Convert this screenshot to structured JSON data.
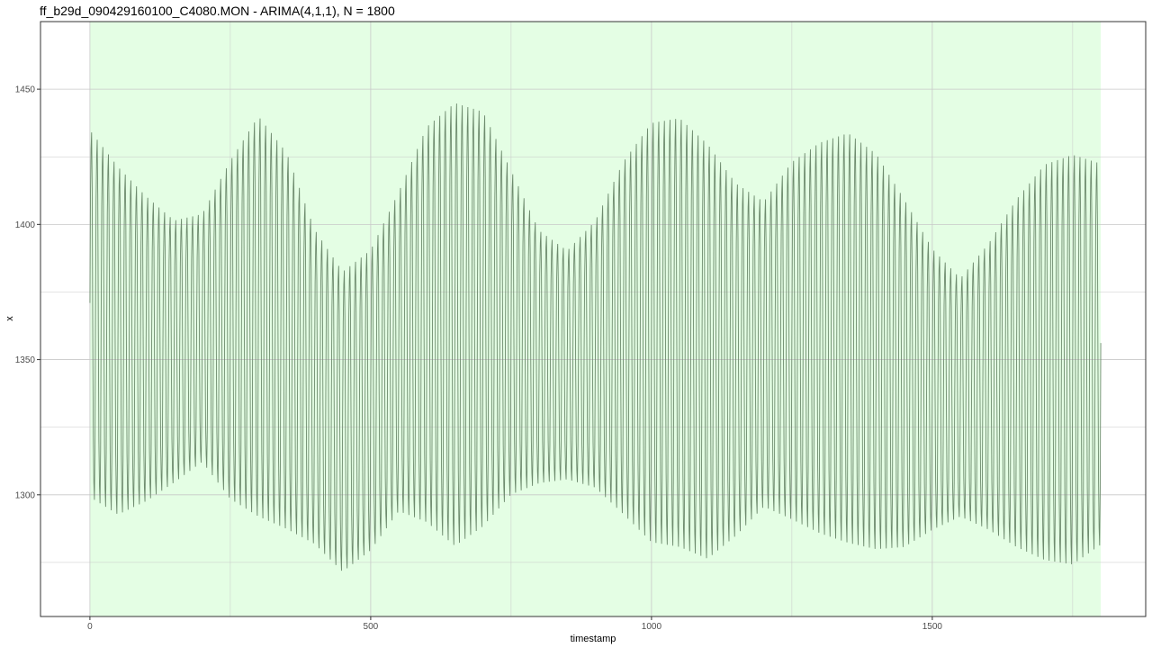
{
  "chart_data": {
    "type": "line",
    "title": "ff_b29d_090429160100_C4080.MON - ARIMA(4,1,1), N = 1800",
    "xlabel": "timestamp",
    "ylabel": "x",
    "xlim": [
      -88,
      1880
    ],
    "ylim": [
      1255,
      1475
    ],
    "x_ticks": [
      0,
      500,
      1000,
      1500
    ],
    "x_tick_labels": [
      "0",
      "500",
      "1000",
      "1500"
    ],
    "y_ticks": [
      1300,
      1350,
      1400,
      1450
    ],
    "y_tick_labels": [
      "1300",
      "1350",
      "1400",
      "1450"
    ],
    "grid": true,
    "highlight_range": [
      0,
      1800
    ],
    "oscillation_period": 10,
    "series": [
      {
        "points_x": [
          0,
          50,
          100,
          150,
          200,
          250,
          300,
          350,
          400,
          450,
          500,
          550,
          600,
          650,
          700,
          750,
          800,
          850,
          900,
          950,
          1000,
          1050,
          1100,
          1150,
          1200,
          1250,
          1300,
          1350,
          1400,
          1450,
          1500,
          1550,
          1600,
          1650,
          1700,
          1750,
          1800
        ],
        "upper_envelope": [
          1444,
          1430,
          1418,
          1408,
          1410,
          1432,
          1450,
          1436,
          1406,
          1390,
          1398,
          1420,
          1446,
          1456,
          1452,
          1428,
          1404,
          1396,
          1408,
          1432,
          1448,
          1450,
          1440,
          1424,
          1416,
          1432,
          1440,
          1444,
          1436,
          1418,
          1398,
          1386,
          1400,
          1418,
          1432,
          1436,
          1432
        ],
        "lower_envelope": [
          1290,
          1284,
          1290,
          1298,
          1306,
          1290,
          1282,
          1278,
          1274,
          1264,
          1272,
          1286,
          1280,
          1270,
          1278,
          1292,
          1298,
          1300,
          1296,
          1284,
          1272,
          1270,
          1266,
          1276,
          1288,
          1282,
          1276,
          1272,
          1270,
          1272,
          1280,
          1286,
          1280,
          1272,
          1266,
          1264,
          1272
        ]
      }
    ],
    "colors": {
      "panel_background": "#e4fee4",
      "plot_background": "#ffffff",
      "line": "#6e8b6e",
      "grid": "#c8c8c8",
      "panel_border": "#333333"
    }
  }
}
